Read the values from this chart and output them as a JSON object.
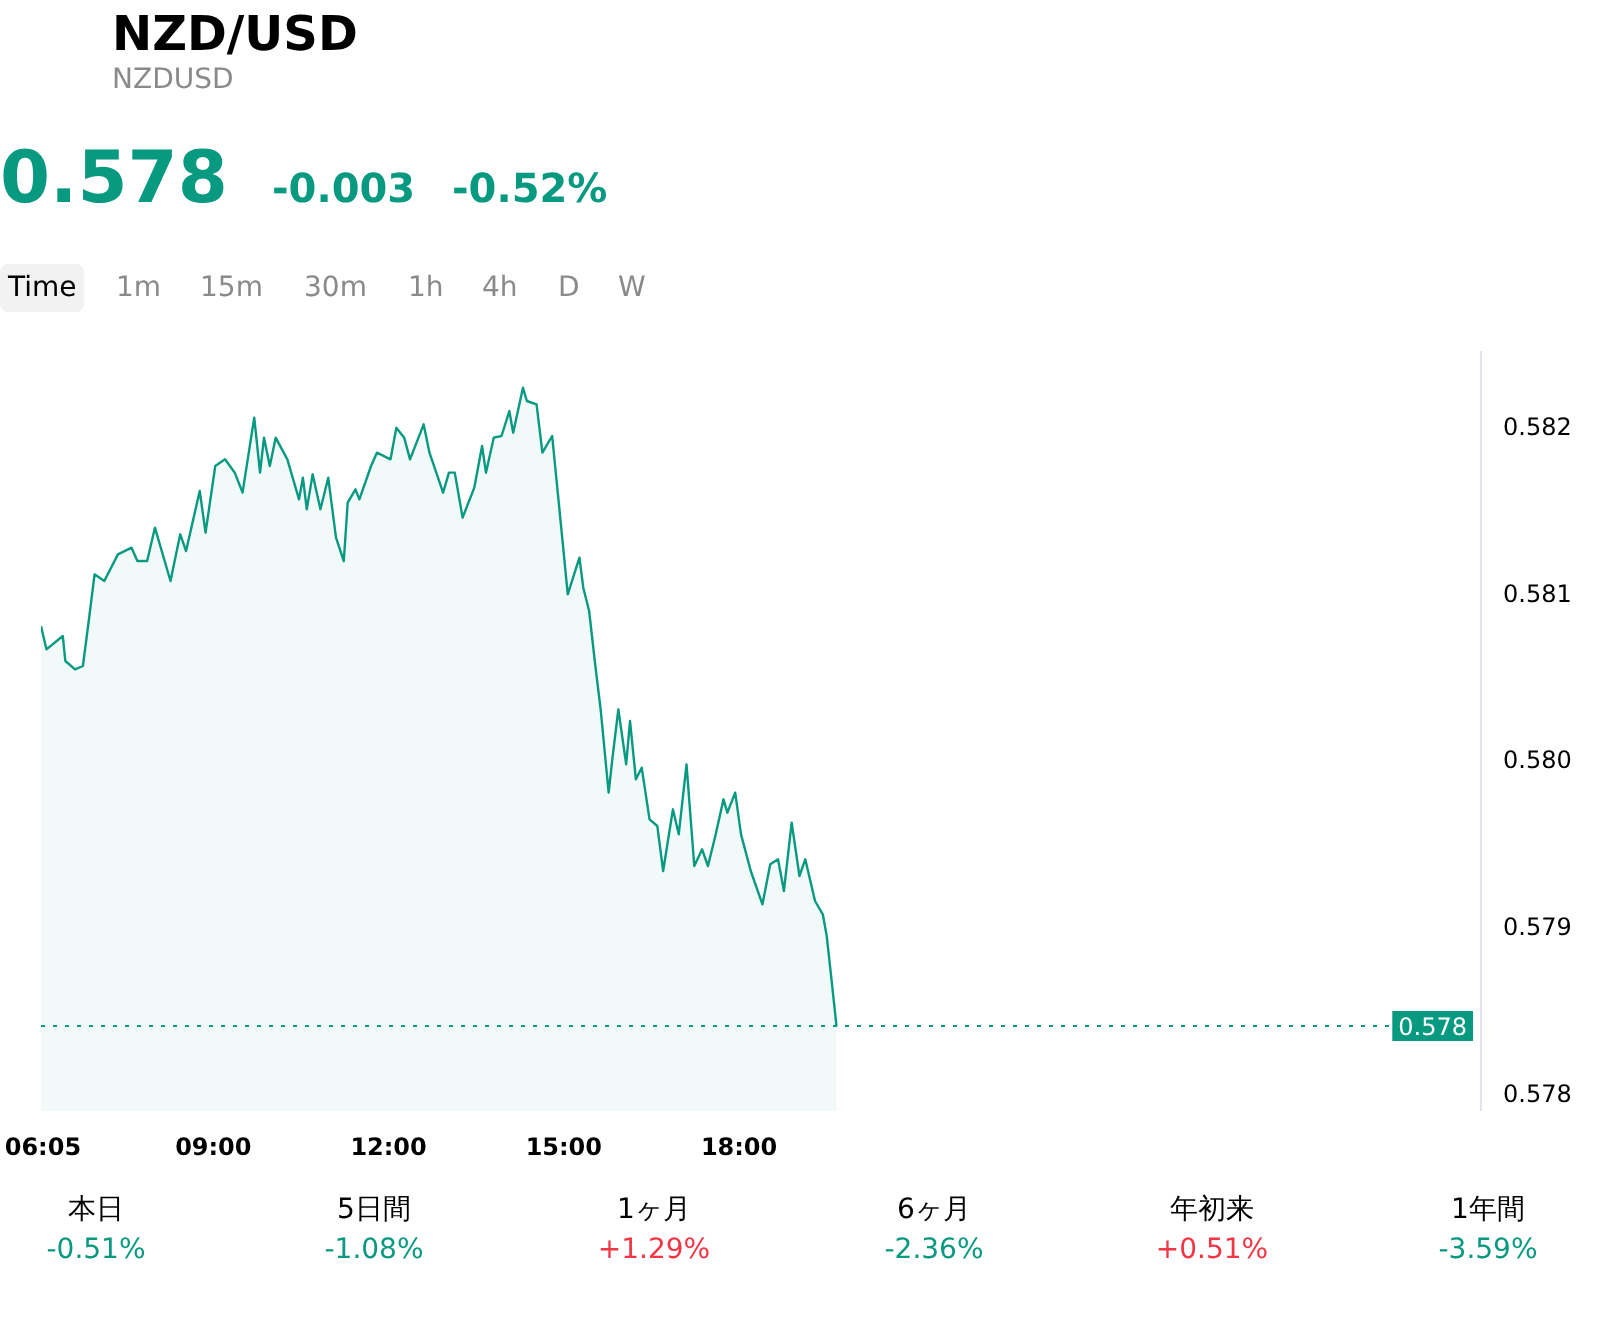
{
  "chart_data": {
    "type": "area",
    "title": "NZD/USD",
    "subtitle": "NZDUSD",
    "annotations": [
      "0.578",
      "-0.003",
      "-0.52%",
      "Time",
      "1m",
      "15m",
      "30m",
      "1h",
      "4h",
      "D",
      "W",
      "本日",
      "-0.51%",
      "5日間",
      "-1.08%",
      "1ヶ月",
      "+1.29%",
      "6ヶ月",
      "-2.36%",
      "年初来",
      "+0.51%",
      "1年間",
      "-3.59%"
    ],
    "x": [
      6.05,
      6.143,
      6.423,
      6.467,
      6.633,
      6.767,
      6.867,
      6.967,
      7.133,
      7.367,
      7.6,
      7.7,
      7.867,
      8.0,
      8.267,
      8.433,
      8.533,
      8.767,
      8.867,
      9.033,
      9.2,
      9.367,
      9.5,
      9.7,
      9.8,
      9.867,
      9.967,
      10.067,
      10.267,
      10.467,
      10.533,
      10.6,
      10.7,
      10.833,
      10.967,
      11.1,
      11.233,
      11.3,
      11.433,
      11.5,
      11.7,
      11.8,
      12.033,
      12.133,
      12.267,
      12.367,
      12.6,
      12.7,
      12.933,
      13.033,
      13.133,
      13.267,
      13.467,
      13.6,
      13.667,
      13.8,
      13.933,
      14.067,
      14.133,
      14.3,
      14.367,
      14.533,
      14.633,
      14.8,
      14.933,
      15.067,
      15.267,
      15.333,
      15.433,
      15.533,
      15.633,
      15.767,
      15.833,
      15.933,
      16.067,
      16.133,
      16.233,
      16.333,
      16.467,
      16.6,
      16.7,
      16.867,
      16.967,
      17.1,
      17.233,
      17.367,
      17.467,
      17.6,
      17.733,
      17.8,
      17.933,
      18.033,
      18.2,
      18.4,
      18.533,
      18.667,
      18.767,
      18.9,
      19.033,
      19.133,
      19.3,
      19.433,
      19.5,
      19.6,
      19.667
    ],
    "series": [
      {
        "color": "#089981",
        "values": [
          0.5808,
          0.58066,
          0.58074,
          0.58059,
          0.58054,
          0.58056,
          0.58083,
          0.58111,
          0.58107,
          0.58123,
          0.58127,
          0.58119,
          0.58119,
          0.58139,
          0.58107,
          0.58135,
          0.58125,
          0.58161,
          0.58136,
          0.58176,
          0.5818,
          0.58172,
          0.5816,
          0.58205,
          0.58172,
          0.58193,
          0.58176,
          0.58193,
          0.5818,
          0.58156,
          0.58169,
          0.5815,
          0.58171,
          0.5815,
          0.58169,
          0.58133,
          0.58119,
          0.58154,
          0.58162,
          0.58156,
          0.58176,
          0.58184,
          0.5818,
          0.58199,
          0.58193,
          0.5818,
          0.58201,
          0.58184,
          0.5816,
          0.58172,
          0.58172,
          0.58145,
          0.58163,
          0.58188,
          0.58172,
          0.58193,
          0.58194,
          0.58209,
          0.58196,
          0.58223,
          0.58215,
          0.58213,
          0.58184,
          0.58194,
          0.58147,
          0.58099,
          0.58121,
          0.58103,
          0.58089,
          0.58058,
          0.58029,
          0.5798,
          0.58001,
          0.5803,
          0.57997,
          0.58023,
          0.57988,
          0.57995,
          0.57964,
          0.5796,
          0.57933,
          0.5797,
          0.57955,
          0.57997,
          0.57936,
          0.57946,
          0.57936,
          0.57955,
          0.57976,
          0.57968,
          0.5798,
          0.57955,
          0.57933,
          0.57913,
          0.57937,
          0.5794,
          0.57921,
          0.57962,
          0.5793,
          0.5794,
          0.57915,
          0.57907,
          0.57894,
          0.57862,
          0.5784
        ]
      }
    ],
    "xlim": [
      6.05,
      30.7
    ],
    "xticks": [
      {
        "value": 6.083,
        "label": "06:05"
      },
      {
        "value": 9,
        "label": "09:00"
      },
      {
        "value": 12,
        "label": "12:00"
      },
      {
        "value": 15,
        "label": "15:00"
      },
      {
        "value": 18,
        "label": "18:00"
      }
    ],
    "ylim": [
      0.57789,
      0.58245
    ],
    "yticks": [
      0.578,
      0.579,
      {
        "value": 0.58,
        "label": "0.580"
      },
      0.581,
      0.582
    ],
    "ref_lines": [
      {
        "axis": "y",
        "value": 0.5784,
        "label": "0.578",
        "color": "#089981",
        "line_style": "dotted"
      }
    ],
    "grid": false
  }
}
